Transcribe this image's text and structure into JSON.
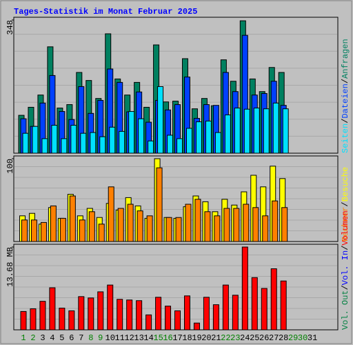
{
  "chart_data": {
    "type": "bar",
    "title": "Tages-Statistik im Monat Februar 2025",
    "categories": [
      "1",
      "2",
      "3",
      "4",
      "5",
      "6",
      "7",
      "8",
      "9",
      "10",
      "11",
      "12",
      "13",
      "14",
      "15",
      "16",
      "17",
      "18",
      "19",
      "20",
      "21",
      "22",
      "23",
      "24",
      "25",
      "26",
      "27",
      "28",
      "29",
      "30",
      "31"
    ],
    "category_colors": [
      "#008000",
      "#008000",
      "#000000",
      "#000000",
      "#000000",
      "#000000",
      "#000000",
      "#008000",
      "#008000",
      "#000000",
      "#000000",
      "#000000",
      "#000000",
      "#000000",
      "#008000",
      "#008000",
      "#000000",
      "#000000",
      "#000000",
      "#000000",
      "#000000",
      "#008000",
      "#008000",
      "#000000",
      "#000000",
      "#000000",
      "#000000",
      "#000000",
      "#008000",
      "#008000",
      "#000000"
    ],
    "legend_separator": "/",
    "panels": [
      {
        "ylim": [
          0,
          348
        ],
        "yticks": [
          348
        ],
        "series": [
          {
            "name": "Anfragen",
            "color": "#008060",
            "values": [
              99,
              120,
              152,
              278,
              118,
              127,
              211,
              190,
              143,
              312,
              194,
              152,
              185,
              120,
              283,
              134,
              136,
              247,
              116,
              143,
              124,
              244,
              188,
              346,
              194,
              161,
              224,
              211,
              null,
              null,
              null
            ]
          },
          {
            "name": "Dateien",
            "color": "#0040ff",
            "values": [
              90,
              70,
              131,
              203,
              109,
              88,
              174,
              104,
              138,
              220,
              185,
              108,
              160,
              81,
              138,
              113,
              127,
              199,
              91,
              127,
              125,
              211,
              161,
              308,
              152,
              156,
              188,
              125,
              null,
              null,
              null
            ]
          },
          {
            "name": "Seiten",
            "color": "#00e0ff",
            "values": [
              52,
              70,
              38,
              73,
              38,
              73,
              52,
              54,
              43,
              68,
              57,
              109,
              90,
              32,
              174,
              47,
              38,
              65,
              82,
              84,
              54,
              100,
              118,
              115,
              118,
              116,
              131,
              116,
              null,
              null,
              null
            ]
          }
        ]
      },
      {
        "ylim": [
          0,
          100
        ],
        "yticks": [
          100
        ],
        "series": [
          {
            "name": "Besuche",
            "color": "#ffff00",
            "values": [
              31,
              34,
              21,
              41,
              28,
              57,
              31,
              40,
              29,
              46,
              38,
              53,
              43,
              28,
              100,
              29,
              28,
              42,
              55,
              48,
              36,
              51,
              44,
              60,
              80,
              66,
              91,
              76,
              null,
              null,
              null
            ]
          },
          {
            "name": "Rechner",
            "color": "#ff8000",
            "values": [
              26,
              26,
              23,
              43,
              28,
              55,
              26,
              36,
              21,
              66,
              40,
              45,
              37,
              31,
              89,
              29,
              29,
              45,
              51,
              36,
              31,
              40,
              40,
              45,
              41,
              31,
              49,
              41,
              null,
              null,
              null
            ]
          }
        ]
      },
      {
        "ylim": [
          0,
          13.68
        ],
        "yticks": [
          {
            "value": 13.68,
            "label": "13.68 MB"
          }
        ],
        "series": [
          {
            "name": "Volumen",
            "color": "#ff0000",
            "values": [
              3.03,
              3.48,
              4.71,
              6.95,
              3.59,
              3.14,
              5.49,
              5.27,
              6.28,
              7.4,
              5.04,
              4.93,
              4.82,
              2.47,
              5.38,
              3.92,
              3.14,
              5.61,
              1.12,
              5.38,
              4.15,
              7.4,
              5.72,
              13.68,
              8.63,
              6.84,
              10.09,
              8.07,
              null,
              null,
              null
            ]
          },
          {
            "name": "Vol. In",
            "color": "#0000ff"
          },
          {
            "name": "Vol. Out",
            "color": "#008040"
          }
        ]
      }
    ]
  }
}
